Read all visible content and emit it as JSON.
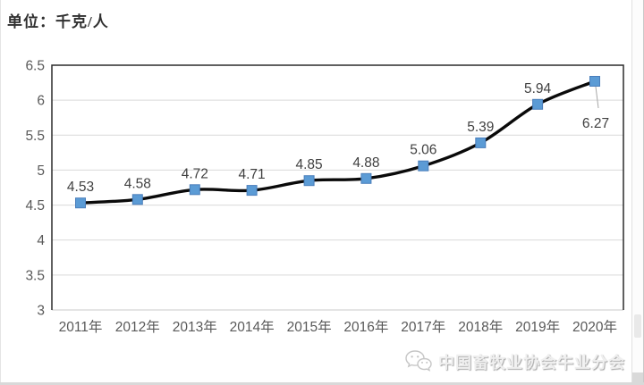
{
  "page": {
    "unit_label": "单位：千克/人"
  },
  "watermark": {
    "text": "中国畜牧业协会牛业分会",
    "icon": "wechat-logo-icon"
  },
  "chart_data": {
    "type": "line",
    "title": "",
    "xlabel": "",
    "ylabel": "单位：千克/人",
    "categories": [
      "2011年",
      "2012年",
      "2013年",
      "2014年",
      "2015年",
      "2016年",
      "2017年",
      "2018年",
      "2019年",
      "2020年"
    ],
    "values": [
      4.53,
      4.58,
      4.72,
      4.71,
      4.85,
      4.88,
      5.06,
      5.39,
      5.94,
      6.27
    ],
    "data_labels": [
      "4.53",
      "4.58",
      "4.72",
      "4.71",
      "4.85",
      "4.88",
      "5.06",
      "5.39",
      "5.94",
      "6.27"
    ],
    "ylim": [
      3,
      6.5
    ],
    "ytick_labels": [
      "3",
      "3.5",
      "4",
      "4.5",
      "5",
      "5.5",
      "6",
      "6.5"
    ],
    "grid": true,
    "legend": "none",
    "smooth_line": true,
    "marker": "square",
    "line_color": "#0a0a0a",
    "marker_color": "#5B9BD5",
    "marker_edge_color": "#4A7EBB",
    "last_label_position": "below-with-leader"
  },
  "colors": {
    "gridline": "#D9D9D9",
    "axis_line": "#C9C9C9",
    "plot_border": "#2b2b2b",
    "axis_text": "#595959",
    "data_label": "#404040",
    "leader_line": "#A6A6A6"
  }
}
